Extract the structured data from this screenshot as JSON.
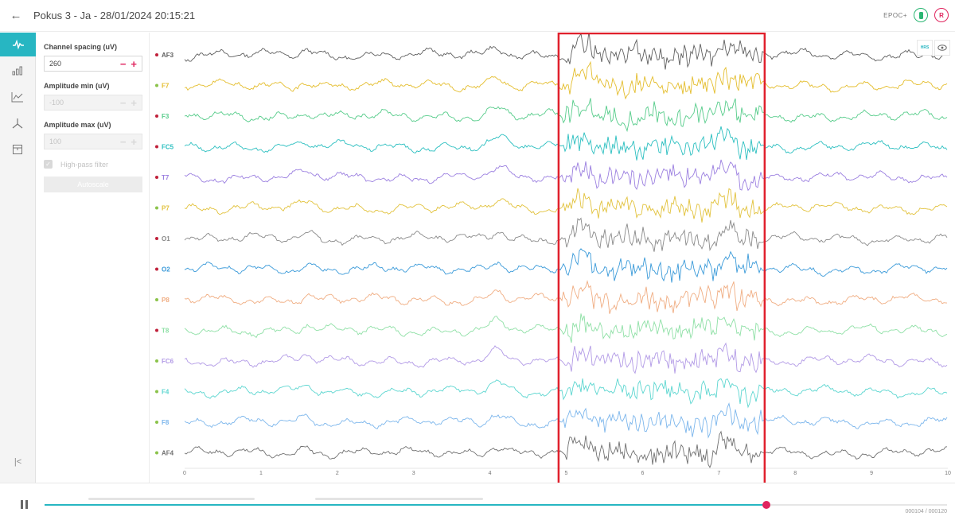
{
  "header": {
    "back_icon": "arrow-left-icon",
    "title": "Pokus 3 - Ja - 28/01/2024 20:15:21",
    "device": "EPOC+",
    "battery_color": "#2bb673",
    "record_color": "#e0245e"
  },
  "sidebar": {
    "accent": "#27b6c2",
    "items": [
      {
        "icon": "eeg-signal-icon",
        "active": true
      },
      {
        "icon": "bar-chart-icon",
        "active": false
      },
      {
        "icon": "line-chart-icon",
        "active": false
      },
      {
        "icon": "motion-axes-icon",
        "active": false
      },
      {
        "icon": "calendar-icon",
        "active": false
      }
    ],
    "collapse": "|<"
  },
  "panel": {
    "channel_spacing_label": "Channel spacing (uV)",
    "channel_spacing_value": "260",
    "amp_min_label": "Amplitude min (uV)",
    "amp_min_value": "-100",
    "amp_max_label": "Amplitude max (uV)",
    "amp_max_value": "100",
    "minus": "−",
    "plus": "+",
    "highpass_label": "High-pass filter",
    "highpass_checked": true,
    "autoscale_label": "Autoscale"
  },
  "toolbar": {
    "hm_label": "HRS",
    "eye_icon": "eye-icon"
  },
  "chart_data": {
    "type": "line",
    "channels": [
      {
        "name": "AF3",
        "color": "#5f5f5f",
        "dot": "#c0203a"
      },
      {
        "name": "F7",
        "color": "#e4bd2c",
        "dot": "#8bc34a"
      },
      {
        "name": "F3",
        "color": "#56cc8a",
        "dot": "#c0203a"
      },
      {
        "name": "FC5",
        "color": "#2bbfc0",
        "dot": "#c0203a"
      },
      {
        "name": "T7",
        "color": "#9b7fe0",
        "dot": "#c0203a"
      },
      {
        "name": "P7",
        "color": "#e2c23c",
        "dot": "#8bc34a"
      },
      {
        "name": "O1",
        "color": "#8a8a8a",
        "dot": "#c0203a"
      },
      {
        "name": "O2",
        "color": "#3a9ad9",
        "dot": "#c0203a"
      },
      {
        "name": "P8",
        "color": "#f0ad82",
        "dot": "#8bc34a"
      },
      {
        "name": "T8",
        "color": "#8fe0a6",
        "dot": "#c0203a"
      },
      {
        "name": "FC6",
        "color": "#b29ae6",
        "dot": "#8bc34a"
      },
      {
        "name": "F4",
        "color": "#5cd6d0",
        "dot": "#8bc34a"
      },
      {
        "name": "F8",
        "color": "#7cb6ec",
        "dot": "#8bc34a"
      },
      {
        "name": "AF4",
        "color": "#707070",
        "dot": "#8bc34a"
      }
    ],
    "xlim": [
      0,
      10
    ],
    "xticks": [
      "0",
      "1",
      "2",
      "3",
      "4",
      "5",
      "6",
      "7",
      "8",
      "9",
      "10"
    ],
    "highlight": {
      "x0": 4.9,
      "x1": 7.6,
      "color": "#e0202c"
    },
    "grid": false
  },
  "playback": {
    "pause_icon": "pause-icon",
    "progress": 0.8,
    "progress_color": "#27b6c2",
    "thumb_color": "#e0245e",
    "counter": "000104 / 000120"
  }
}
